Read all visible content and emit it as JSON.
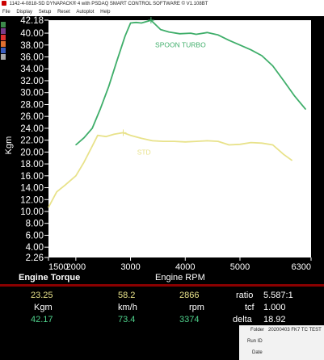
{
  "window": {
    "title": "1142-4-0818-SD DYNAPACK® 4 with PSDAQ SMART CONTROL SOFTWARE © V1.108BT"
  },
  "menu": [
    "File",
    "Display",
    "Setup",
    "Reset",
    "Autoplot",
    "Help"
  ],
  "legend_swatches": [
    "#3c8a4a",
    "#7a3c8a",
    "#e03030",
    "#e07030",
    "#3c5fbf",
    "#aaaaaa"
  ],
  "chart_data": {
    "type": "line",
    "title": "Engine Torque",
    "xlabel": "Engine RPM",
    "ylabel": "Kgm",
    "xlim": [
      1500,
      6300
    ],
    "ylim": [
      2.26,
      42.18
    ],
    "x_ticks": [
      1500,
      2000,
      3000,
      4000,
      5000,
      6300
    ],
    "x_tick_labels": [
      "1500",
      "2000",
      "3000",
      "4000",
      "5000",
      "6300"
    ],
    "y_ticks": [
      2.26,
      4.0,
      6.0,
      8.0,
      10.0,
      12.0,
      14.0,
      16.0,
      18.0,
      20.0,
      22.0,
      24.0,
      26.0,
      28.0,
      30.0,
      32.0,
      34.0,
      36.0,
      38.0,
      40.0,
      42.18
    ],
    "y_tick_labels": [
      "2.26",
      "4.00",
      "6.00",
      "8.00",
      "10.00",
      "12.00",
      "14.00",
      "16.00",
      "18.00",
      "20.00",
      "22.00",
      "24.00",
      "26.00",
      "28.00",
      "30.00",
      "32.00",
      "34.00",
      "36.00",
      "38.00",
      "40.00",
      "42.18"
    ],
    "series": [
      {
        "name": "SPOON TURBO",
        "color": "#3fae6a",
        "label_at": [
          3450,
          37.6
        ],
        "marker": [
          3374,
          42.17
        ],
        "x": [
          2000,
          2150,
          2300,
          2450,
          2600,
          2750,
          2900,
          3000,
          3100,
          3200,
          3374,
          3550,
          3700,
          3900,
          4100,
          4200,
          4400,
          4600,
          4800,
          5000,
          5200,
          5400,
          5600,
          5800,
          6000,
          6200
        ],
        "y": [
          21.2,
          22.4,
          24.0,
          27.3,
          31.0,
          35.3,
          39.5,
          41.7,
          41.8,
          41.7,
          42.17,
          40.6,
          40.2,
          39.9,
          40.0,
          39.8,
          40.1,
          39.7,
          38.8,
          38.0,
          37.2,
          36.2,
          34.5,
          32.0,
          29.4,
          27.2
        ]
      },
      {
        "name": "STD",
        "color": "#e8e28a",
        "label_at": [
          3120,
          19.6
        ],
        "marker": [
          2866,
          23.25
        ],
        "x": [
          1500,
          1650,
          1800,
          2000,
          2150,
          2300,
          2400,
          2550,
          2700,
          2866,
          3000,
          3200,
          3400,
          3600,
          3800,
          4000,
          4200,
          4400,
          4600,
          4800,
          5000,
          5200,
          5400,
          5600,
          5800,
          5950
        ],
        "y": [
          10.7,
          13.3,
          14.4,
          16.0,
          18.3,
          21.0,
          22.8,
          22.6,
          23.0,
          23.25,
          22.8,
          22.3,
          21.9,
          21.8,
          21.8,
          21.7,
          21.8,
          21.9,
          21.8,
          21.2,
          21.3,
          21.6,
          21.5,
          21.2,
          19.6,
          18.6
        ]
      }
    ]
  },
  "readout": {
    "row1": {
      "torque": "23.25",
      "speed": "58.2",
      "rpm": "2866",
      "ratio_label": "ratio",
      "ratio_value": "5.587:1"
    },
    "row2": {
      "torque_unit": "Kgm",
      "speed_unit": "km/h",
      "rpm_unit": "rpm",
      "tcf_label": "tcf",
      "tcf_value": "1.000"
    },
    "row3": {
      "torque": "42.17",
      "speed": "73.4",
      "rpm": "3374",
      "delta_label": "delta",
      "delta_value": "18.92"
    }
  },
  "folder": {
    "folder_label": "Folder",
    "folder_value": "20200403 FK7 TC TEST",
    "run_label": "Run ID",
    "date_label": "Date"
  }
}
